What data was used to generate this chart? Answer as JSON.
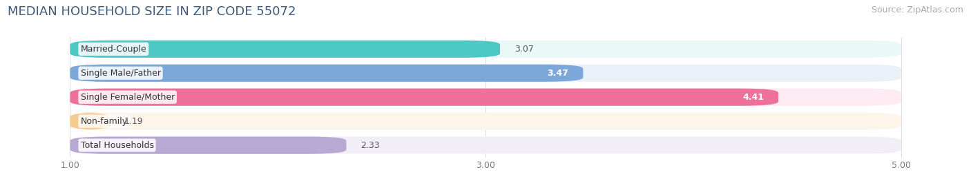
{
  "title": "MEDIAN HOUSEHOLD SIZE IN ZIP CODE 55072",
  "source": "Source: ZipAtlas.com",
  "categories": [
    "Married-Couple",
    "Single Male/Father",
    "Single Female/Mother",
    "Non-family",
    "Total Households"
  ],
  "values": [
    3.07,
    3.47,
    4.41,
    1.19,
    2.33
  ],
  "bar_colors": [
    "#4ec8c4",
    "#7ba8d8",
    "#f0709c",
    "#f5ca90",
    "#b8a8d4"
  ],
  "bar_bg_colors": [
    "#eaf8f8",
    "#eaeff8",
    "#fdeaf2",
    "#fef5ea",
    "#f2eef8"
  ],
  "value_inside": [
    false,
    true,
    true,
    false,
    false
  ],
  "value_color_inside": "#ffffff",
  "value_color_outside": "#555555",
  "xlim": [
    0.7,
    5.3
  ],
  "xdata_min": 1.0,
  "xdata_max": 5.0,
  "xticks": [
    1.0,
    3.0,
    5.0
  ],
  "bar_height": 0.72,
  "background_color": "#ffffff",
  "title_color": "#3d5a7a",
  "title_fontsize": 13,
  "label_fontsize": 9,
  "value_fontsize": 9,
  "source_fontsize": 9,
  "source_color": "#aaaaaa",
  "grid_color": "#dddddd"
}
